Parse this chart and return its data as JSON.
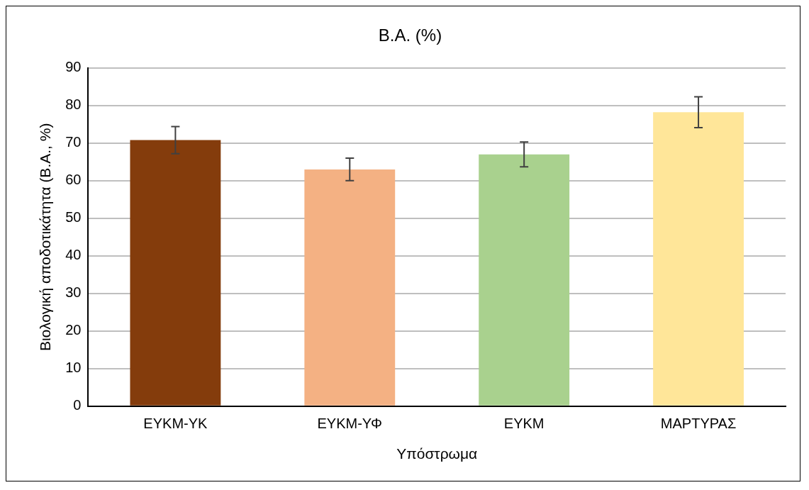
{
  "chart_data": {
    "type": "bar",
    "title": "Β.Α. (%)",
    "xlabel": "Υπόστρωμα",
    "ylabel": "Βιολογική αποδοτικάτητα (Β.Α., %)",
    "categories": [
      "ΕΥΚΜ-ΥΚ",
      "ΕΥΚΜ-ΥΦ",
      "ΕΥΚΜ",
      "ΜΑΡΤΥΡΑΣ"
    ],
    "values": [
      70.8,
      63.0,
      67.0,
      78.2
    ],
    "errors": [
      3.6,
      3.0,
      3.3,
      4.1
    ],
    "colors": [
      "#843c0c",
      "#f4b183",
      "#a9d18e",
      "#ffe699"
    ],
    "ylim": [
      0,
      90
    ],
    "yticks": [
      0,
      10,
      20,
      30,
      40,
      50,
      60,
      70,
      80,
      90
    ],
    "grid": "y",
    "legend": false
  }
}
